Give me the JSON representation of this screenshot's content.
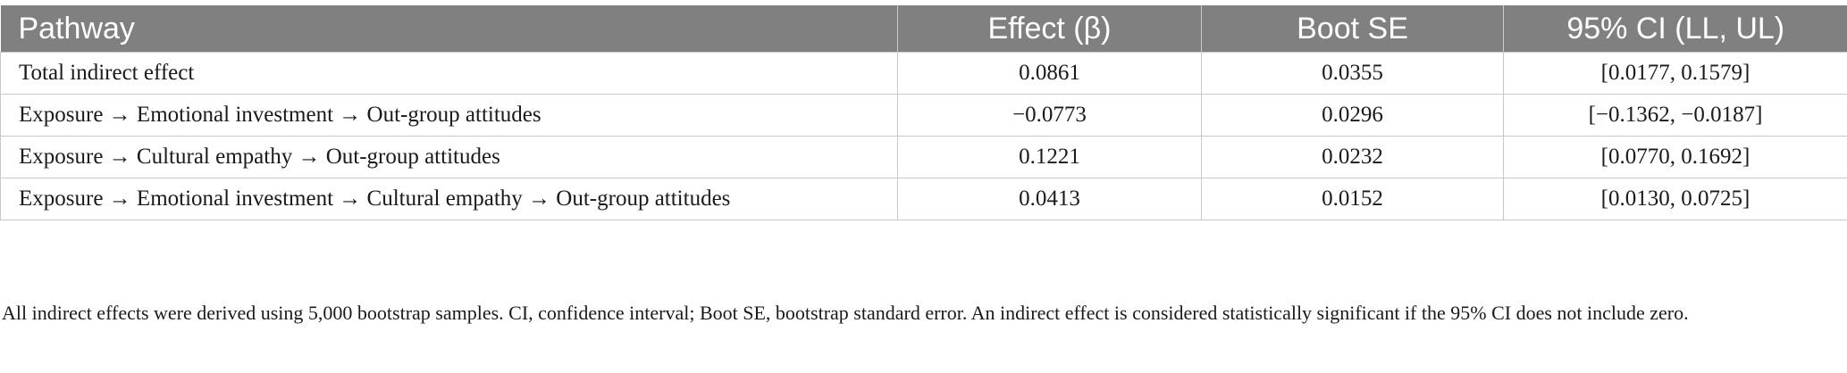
{
  "table": {
    "headers": [
      "Pathway",
      "Effect (β)",
      "Boot SE",
      "95% CI (LL, UL)"
    ],
    "rows": [
      [
        "Total indirect effect",
        "0.0861",
        "0.0355",
        "[0.0177, 0.1579]"
      ],
      [
        "Exposure → Emotional investment → Out-group attitudes",
        "−0.0773",
        "0.0296",
        "[−0.1362, −0.0187]"
      ],
      [
        "Exposure → Cultural empathy → Out-group attitudes",
        "0.1221",
        "0.0232",
        "[0.0770, 0.1692]"
      ],
      [
        "Exposure → Emotional investment → Cultural empathy → Out-group attitudes",
        "0.0413",
        "0.0152",
        "[0.0130, 0.0725]"
      ]
    ],
    "header_background": "#808080"
  },
  "footnote": "All indirect effects were derived using 5,000 bootstrap samples. CI, confidence interval; Boot SE, bootstrap standard error. An indirect effect is considered statistically significant if the 95% CI does not include zero."
}
